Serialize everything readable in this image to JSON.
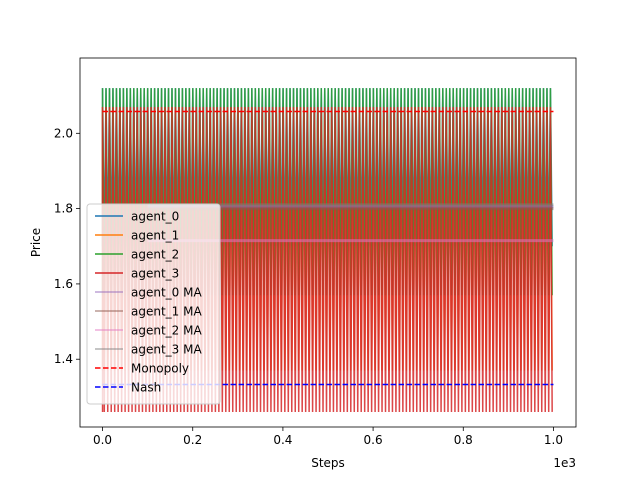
{
  "chart_data": {
    "type": "line",
    "title": "",
    "xlabel": "Steps",
    "ylabel": "Price",
    "x_offset_label": "1e3",
    "xlim": [
      -0.05,
      1.05
    ],
    "ylim": [
      1.22,
      2.2
    ],
    "xticks": [
      0.0,
      0.2,
      0.4,
      0.6,
      0.8,
      1.0
    ],
    "xtick_labels": [
      "0.0",
      "0.2",
      "0.4",
      "0.6",
      "0.8",
      "1.0"
    ],
    "yticks": [
      1.4,
      1.6,
      1.8,
      2.0
    ],
    "ytick_labels": [
      "1.4",
      "1.6",
      "1.8",
      "2.0"
    ],
    "grid": false,
    "legend_position": "lower-left",
    "oscillation": {
      "x_start": 0.0,
      "x_end": 1.0,
      "period": 0.0077
    },
    "series": [
      {
        "name": "agent_0",
        "color": "#1f77b4",
        "style": "solid",
        "oscillating": true,
        "high": 2.12,
        "low": 1.7,
        "x_start": 0.0
      },
      {
        "name": "agent_1",
        "color": "#ff7f0e",
        "style": "solid",
        "oscillating": true,
        "high": 2.07,
        "low": 1.37,
        "x_start": 0.0
      },
      {
        "name": "agent_2",
        "color": "#2ca02c",
        "style": "solid",
        "oscillating": true,
        "high": 2.12,
        "low": 1.57,
        "x_start": 0.0
      },
      {
        "name": "agent_3",
        "color": "#d62728",
        "style": "solid",
        "oscillating": true,
        "high": 2.07,
        "low": 1.26,
        "x_start": 0.0
      },
      {
        "name": "agent_0 MA",
        "color": "#9467bd",
        "style": "solid",
        "oscillating": false,
        "value": 1.805,
        "x_start": 0.1,
        "x_end": 1.0
      },
      {
        "name": "agent_1 MA",
        "color": "#8c564b",
        "style": "solid",
        "oscillating": false,
        "value": 1.8,
        "x_start": 0.1,
        "x_end": 1.0
      },
      {
        "name": "agent_2 MA",
        "color": "#e377c2",
        "style": "solid",
        "oscillating": false,
        "value": 1.715,
        "x_start": 0.1,
        "x_end": 1.0
      },
      {
        "name": "agent_3 MA",
        "color": "#7f7f7f",
        "style": "solid",
        "oscillating": false,
        "value": 1.81,
        "x_start": 0.1,
        "x_end": 1.0
      },
      {
        "name": "Monopoly",
        "color": "#ff0000",
        "style": "dashed",
        "oscillating": false,
        "value": 2.058,
        "x_start": 0.0,
        "x_end": 1.0
      },
      {
        "name": "Nash",
        "color": "#0000ff",
        "style": "dashed",
        "oscillating": false,
        "value": 1.333,
        "x_start": 0.0,
        "x_end": 1.0
      }
    ]
  }
}
